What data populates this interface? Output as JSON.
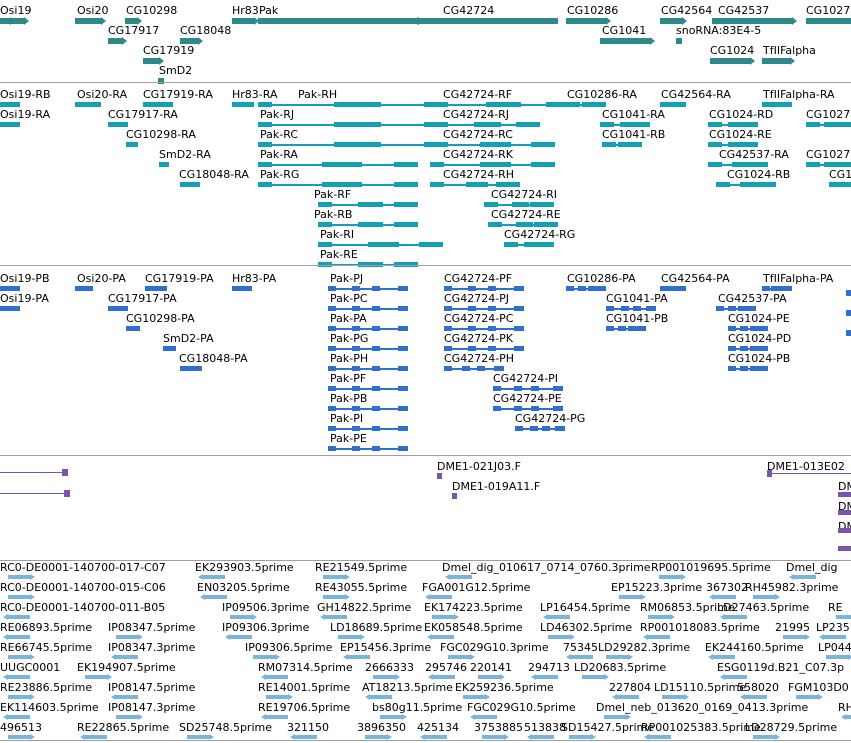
{
  "track_colors": {
    "genes": "#2e8a8a",
    "transcripts_rna": "#14a0b4",
    "transcripts_pa": "#2f6fd0",
    "clones": "#7a55a8",
    "ests": "#78b4dc",
    "separator": "#a0a0a0"
  },
  "track_genes": {
    "labels": [
      "Osi19",
      "Osi20",
      "CG10298",
      "CG17917",
      "CG18048",
      "CG17919",
      "SmD2",
      "Hr83",
      "Pak",
      "CG42724",
      "CG10286",
      "CG1041",
      "CG42564",
      "CG42537",
      "snoRNA:83E4-5",
      "CG1024",
      "TfIIFalpha",
      "CG1027"
    ]
  },
  "track_rna": {
    "labels": [
      "Osi19-RB",
      "Osi19-RA",
      "Osi20-RA",
      "CG17919-RA",
      "CG17917-RA",
      "CG10298-RA",
      "SmD2-RA",
      "CG18048-RA",
      "Hr83-RA",
      "Pak-RH",
      "Pak-RJ",
      "Pak-RC",
      "Pak-RA",
      "Pak-RG",
      "Pak-RF",
      "Pak-RB",
      "Pak-RI",
      "Pak-RE",
      "CG42724-RF",
      "CG42724-RJ",
      "CG42724-RC",
      "CG42724-RK",
      "CG42724-RH",
      "CG42724-RI",
      "CG42724-RE",
      "CG42724-RG",
      "CG10286-RA",
      "CG1041-RA",
      "CG1041-RB",
      "CG42564-RA",
      "TfIIFalpha-RA",
      "CG1024-RD",
      "CG1024-RE",
      "CG42537-RA",
      "CG1024-RB",
      "CG1027",
      "CG1027",
      "CG1027"
    ]
  },
  "track_pa": {
    "labels": [
      "Osi19-PB",
      "Osi19-PA",
      "Osi20-PA",
      "CG17919-PA",
      "CG17917-PA",
      "CG10298-PA",
      "SmD2-PA",
      "CG18048-PA",
      "Hr83-PA",
      "Pak-PJ",
      "Pak-PC",
      "Pak-PA",
      "Pak-PG",
      "Pak-PH",
      "Pak-PF",
      "Pak-PB",
      "Pak-PI",
      "Pak-PE",
      "CG42724-PF",
      "CG42724-PJ",
      "CG42724-PC",
      "CG42724-PK",
      "CG42724-PH",
      "CG42724-PI",
      "CG42724-PE",
      "CG42724-PG",
      "CG10286-PA",
      "CG1041-PA",
      "CG1041-PB",
      "CG42564-PA",
      "TfIIFalpha-PA",
      "CG42537-PA",
      "CG1024-PE",
      "CG1024-PD",
      "CG1024-PB"
    ]
  },
  "track_clones": {
    "labels": [
      "DME1-021J03.F",
      "DME1-019A11.F",
      "DME1-013E02",
      "DM",
      "DM",
      "DM"
    ]
  },
  "track_ests": {
    "labels": [
      "RC0-DE0001-140700-017-C07",
      "EK293903.5prime",
      "RE21549.5prime",
      "Dmel_dig_010617_0714_0760.3prime",
      "RP001019695.5prime",
      "Dmel_dig",
      "RC0-DE0001-140700-015-C06",
      "EN03205.5prime",
      "RE43055.5prime",
      "FGA001G12.5prime",
      "EP15223.3prime",
      "367302",
      "RH45982.3prime",
      "RC0-DE0001-140700-011-B05",
      "IP09506.3prime",
      "GH14822.5prime",
      "EK174223.5prime",
      "LP16454.5prime",
      "RM06853.5prime",
      "LD27463.5prime",
      "RE",
      "RE06893.5prime",
      "IP08347.5prime",
      "IP09306.3prime",
      "LD18689.5prime",
      "EK058548.5prime",
      "LD46302.5prime",
      "RP001018083.5prime",
      "21995",
      "LP235",
      "RE66745.5prime",
      "IP08347.3prime",
      "IP09306.5prime",
      "EP15456.3prime",
      "FGC029G10.3prime",
      "75345",
      "LD29282.3prime",
      "EK244160.5prime",
      "LP044",
      "UUGC0001",
      "EK194907.5prime",
      "RM07314.5prime",
      "2666333",
      "295746",
      "220141",
      "294713",
      "LD20683.5prime",
      "ESG0119d.B21_C07.3p",
      "RE23886.5prime",
      "IP08147.5prime",
      "RE14001.5prime",
      "AT18213.5prime",
      "EK259236.5prime",
      "227804",
      "LD15110.5prime",
      "558020",
      "FGM103D0",
      "EK114603.5prime",
      "IP08147.3prime",
      "RE19706.5prime",
      "bs80g11.5prime",
      "FGC029G10.5prime",
      "Dmel_neb_013620_0169_0413.3prime",
      "RH",
      "496513",
      "RE22865.5prime",
      "SD25748.5prime",
      "321150",
      "3896350",
      "425134",
      "3753885",
      "513838",
      "SD15427.5prime",
      "RP001025383.5prime",
      "LD28729.5prime"
    ]
  }
}
